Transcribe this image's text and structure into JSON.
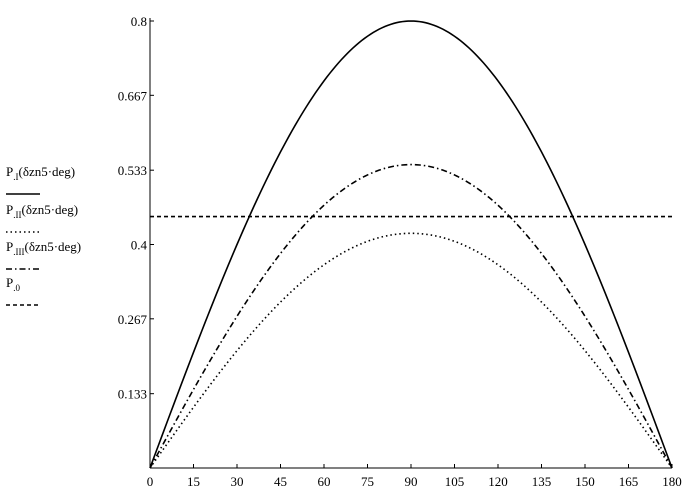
{
  "chart_data": {
    "type": "line",
    "x_ticks": [
      0,
      15,
      30,
      45,
      60,
      75,
      90,
      105,
      120,
      135,
      150,
      165,
      180
    ],
    "y_ticks": [
      "0.8",
      "0.667",
      "0.533",
      "0.4",
      "0.267",
      "0.133"
    ],
    "xlim": [
      0,
      180
    ],
    "ylim": [
      0,
      0.8
    ],
    "grid": false,
    "legend_position": "left",
    "series": [
      {
        "name_main": "P",
        "name_sub": ".I",
        "name_arg": "(δzn5·deg)",
        "style": "solid",
        "amplitude": 0.8
      },
      {
        "name_main": "P",
        "name_sub": ".II",
        "name_arg": "(δzn5·deg)",
        "style": "dotted",
        "amplitude": 0.42
      },
      {
        "name_main": "P",
        "name_sub": ".III",
        "name_arg": "(δzn5·deg)",
        "style": "dashdot",
        "amplitude": 0.543
      },
      {
        "name_main": "P",
        "name_sub": ".0",
        "name_arg": "",
        "style": "dashed",
        "constant": 0.45
      }
    ]
  }
}
